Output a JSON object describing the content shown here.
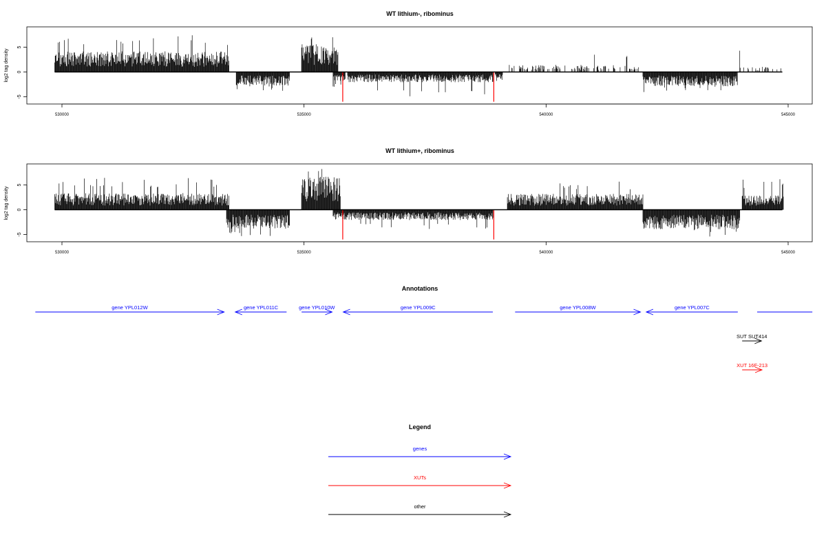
{
  "chart_data": [
    {
      "type": "bar",
      "title": "WT lithium-, ribominus",
      "xlabel": "",
      "ylabel": "log2 tag density",
      "xlim": [
        529700,
        545500
      ],
      "ylim": [
        -6.5,
        9
      ],
      "x_ticks": [
        530000,
        535000,
        540000,
        545000
      ],
      "x_tick_labels": [
        "530000",
        "535000",
        "540000",
        "545000"
      ],
      "y_ticks": [
        -5,
        0,
        5
      ],
      "y_tick_labels": [
        "-5",
        "0",
        "5"
      ],
      "color": "#000000",
      "highlight_color": "#ff0000",
      "series": [
        {
          "strand": "+",
          "segments": [
            {
              "start": 529850,
              "end": 533450,
              "mean": 2.6,
              "max": 7.5
            },
            {
              "start": 534950,
              "end": 535700,
              "mean": 3.5,
              "max": 7.0
            },
            {
              "start": 539200,
              "end": 541950,
              "mean": 0.9,
              "max": 3.8,
              "density": 0.35
            },
            {
              "start": 544000,
              "end": 544850,
              "mean": 0.7,
              "max": 4.5,
              "density": 0.2
            }
          ]
        },
        {
          "strand": "-",
          "segments": [
            {
              "start": 533600,
              "end": 534700,
              "mean": 1.7,
              "max": 4.0
            },
            {
              "start": 535600,
              "end": 535850,
              "mean": 1.2,
              "max": 3.0
            },
            {
              "start": 535900,
              "end": 538900,
              "mean": 1.3,
              "max": 5.2
            },
            {
              "start": 538950,
              "end": 539100,
              "mean": 1.0,
              "max": 2.5
            },
            {
              "start": 542000,
              "end": 543950,
              "mean": 1.8,
              "max": 4.2
            }
          ]
        }
      ],
      "highlights": [
        {
          "x": 535800,
          "value": -6.0
        },
        {
          "x": 538920,
          "value": -6.0
        }
      ]
    },
    {
      "type": "bar",
      "title": "WT lithium+, ribominus",
      "xlabel": "",
      "ylabel": "log2 tag density",
      "xlim": [
        529700,
        545500
      ],
      "ylim": [
        -6.5,
        9
      ],
      "x_ticks": [
        530000,
        535000,
        540000,
        545000
      ],
      "x_tick_labels": [
        "530000",
        "535000",
        "540000",
        "545000"
      ],
      "y_ticks": [
        -5,
        0,
        5
      ],
      "y_tick_labels": [
        "-5",
        "0",
        "5"
      ],
      "color": "#000000",
      "highlight_color": "#ff0000",
      "series": [
        {
          "strand": "+",
          "segments": [
            {
              "start": 529850,
              "end": 533450,
              "mean": 2.1,
              "max": 6.5
            },
            {
              "start": 534950,
              "end": 535750,
              "mean": 4.2,
              "max": 8.8
            },
            {
              "start": 539200,
              "end": 542000,
              "mean": 2.0,
              "max": 5.8
            },
            {
              "start": 544050,
              "end": 544900,
              "mean": 1.8,
              "max": 6.2
            }
          ]
        },
        {
          "strand": "-",
          "segments": [
            {
              "start": 533400,
              "end": 534700,
              "mean": 2.4,
              "max": 5.8
            },
            {
              "start": 535600,
              "end": 538900,
              "mean": 1.3,
              "max": 4.0
            },
            {
              "start": 542000,
              "end": 544000,
              "mean": 2.5,
              "max": 5.5
            }
          ]
        }
      ],
      "highlights": [
        {
          "x": 535800,
          "value": -6.0
        },
        {
          "x": 538920,
          "value": -6.0
        }
      ]
    }
  ],
  "annotations": {
    "title": "Annotations",
    "items": [
      {
        "label": "gene YPL012W",
        "start": 529450,
        "end": 533350,
        "strand": "+",
        "color": "#0000ff",
        "row": 0
      },
      {
        "label": "gene YPL011C",
        "start": 533580,
        "end": 534640,
        "strand": "-",
        "color": "#0000ff",
        "row": 0
      },
      {
        "label": "gene YPL010W",
        "start": 534950,
        "end": 535580,
        "strand": "+",
        "color": "#0000ff",
        "row": 0
      },
      {
        "label": "gene YPL009C",
        "start": 535810,
        "end": 538900,
        "strand": "-",
        "color": "#0000ff",
        "row": 0
      },
      {
        "label": "gene YPL008W",
        "start": 539360,
        "end": 541950,
        "strand": "+",
        "color": "#0000ff",
        "row": 0
      },
      {
        "label": "gene YPL007C",
        "start": 542070,
        "end": 543960,
        "strand": "-",
        "color": "#0000ff",
        "row": 0
      },
      {
        "label": "",
        "start": 544360,
        "end": 545500,
        "strand": "+",
        "color": "#0000ff",
        "row": 0,
        "clipped": true
      },
      {
        "label": "SUT SUT414",
        "start": 544050,
        "end": 544450,
        "strand": "+",
        "color": "#000000",
        "row": 1
      },
      {
        "label": "XUT 16F-213",
        "start": 544050,
        "end": 544460,
        "strand": "+",
        "color": "#ff0000",
        "row": 2
      }
    ]
  },
  "legend": {
    "title": "Legend",
    "items": [
      {
        "label": "genes",
        "color": "#0000ff"
      },
      {
        "label": "XUTs",
        "color": "#ff0000"
      },
      {
        "label": "other",
        "color": "#000000"
      }
    ]
  }
}
